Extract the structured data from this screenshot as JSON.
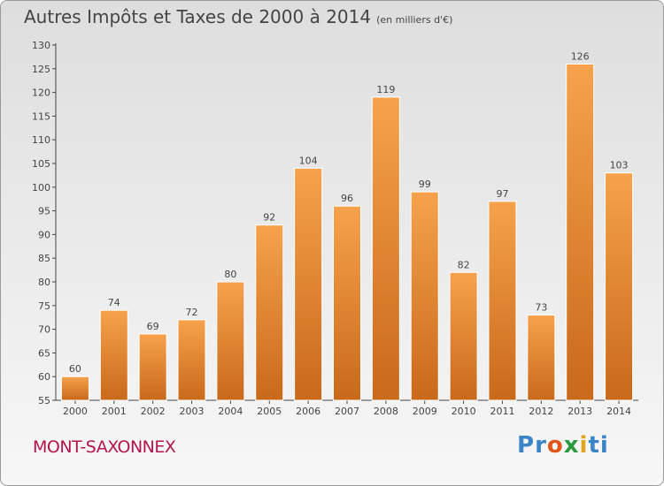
{
  "header": {
    "title": "Autres Impôts et Taxes de 2000 à 2014",
    "unit": "(en milliers d'€)"
  },
  "footer": {
    "place": "MONT-SAXONNEX",
    "logo": [
      "P",
      "r",
      "o",
      "x",
      "i",
      "t",
      "i"
    ]
  },
  "colors": {
    "bar_top": "#f6a24c",
    "bar_bottom": "#c9691a",
    "place": "#b3154f",
    "logo": [
      "#3a85c8",
      "#3a85c8",
      "#e1571b",
      "#2b9a3f",
      "#e1a51b",
      "#3a85c8",
      "#3a85c8"
    ]
  },
  "chart_data": {
    "type": "bar",
    "title": "Autres Impôts et Taxes de 2000 à 2014",
    "xlabel": "",
    "ylabel": "",
    "categories": [
      "2000",
      "2001",
      "2002",
      "2003",
      "2004",
      "2005",
      "2006",
      "2007",
      "2008",
      "2009",
      "2010",
      "2011",
      "2012",
      "2013",
      "2014"
    ],
    "values": [
      60,
      74,
      69,
      72,
      80,
      92,
      104,
      96,
      119,
      99,
      82,
      97,
      73,
      126,
      103
    ],
    "ylim": [
      55,
      130
    ],
    "yticks": [
      55,
      60,
      65,
      70,
      75,
      80,
      85,
      90,
      95,
      100,
      105,
      110,
      115,
      120,
      125,
      130
    ],
    "grid": false,
    "legend": "none"
  }
}
